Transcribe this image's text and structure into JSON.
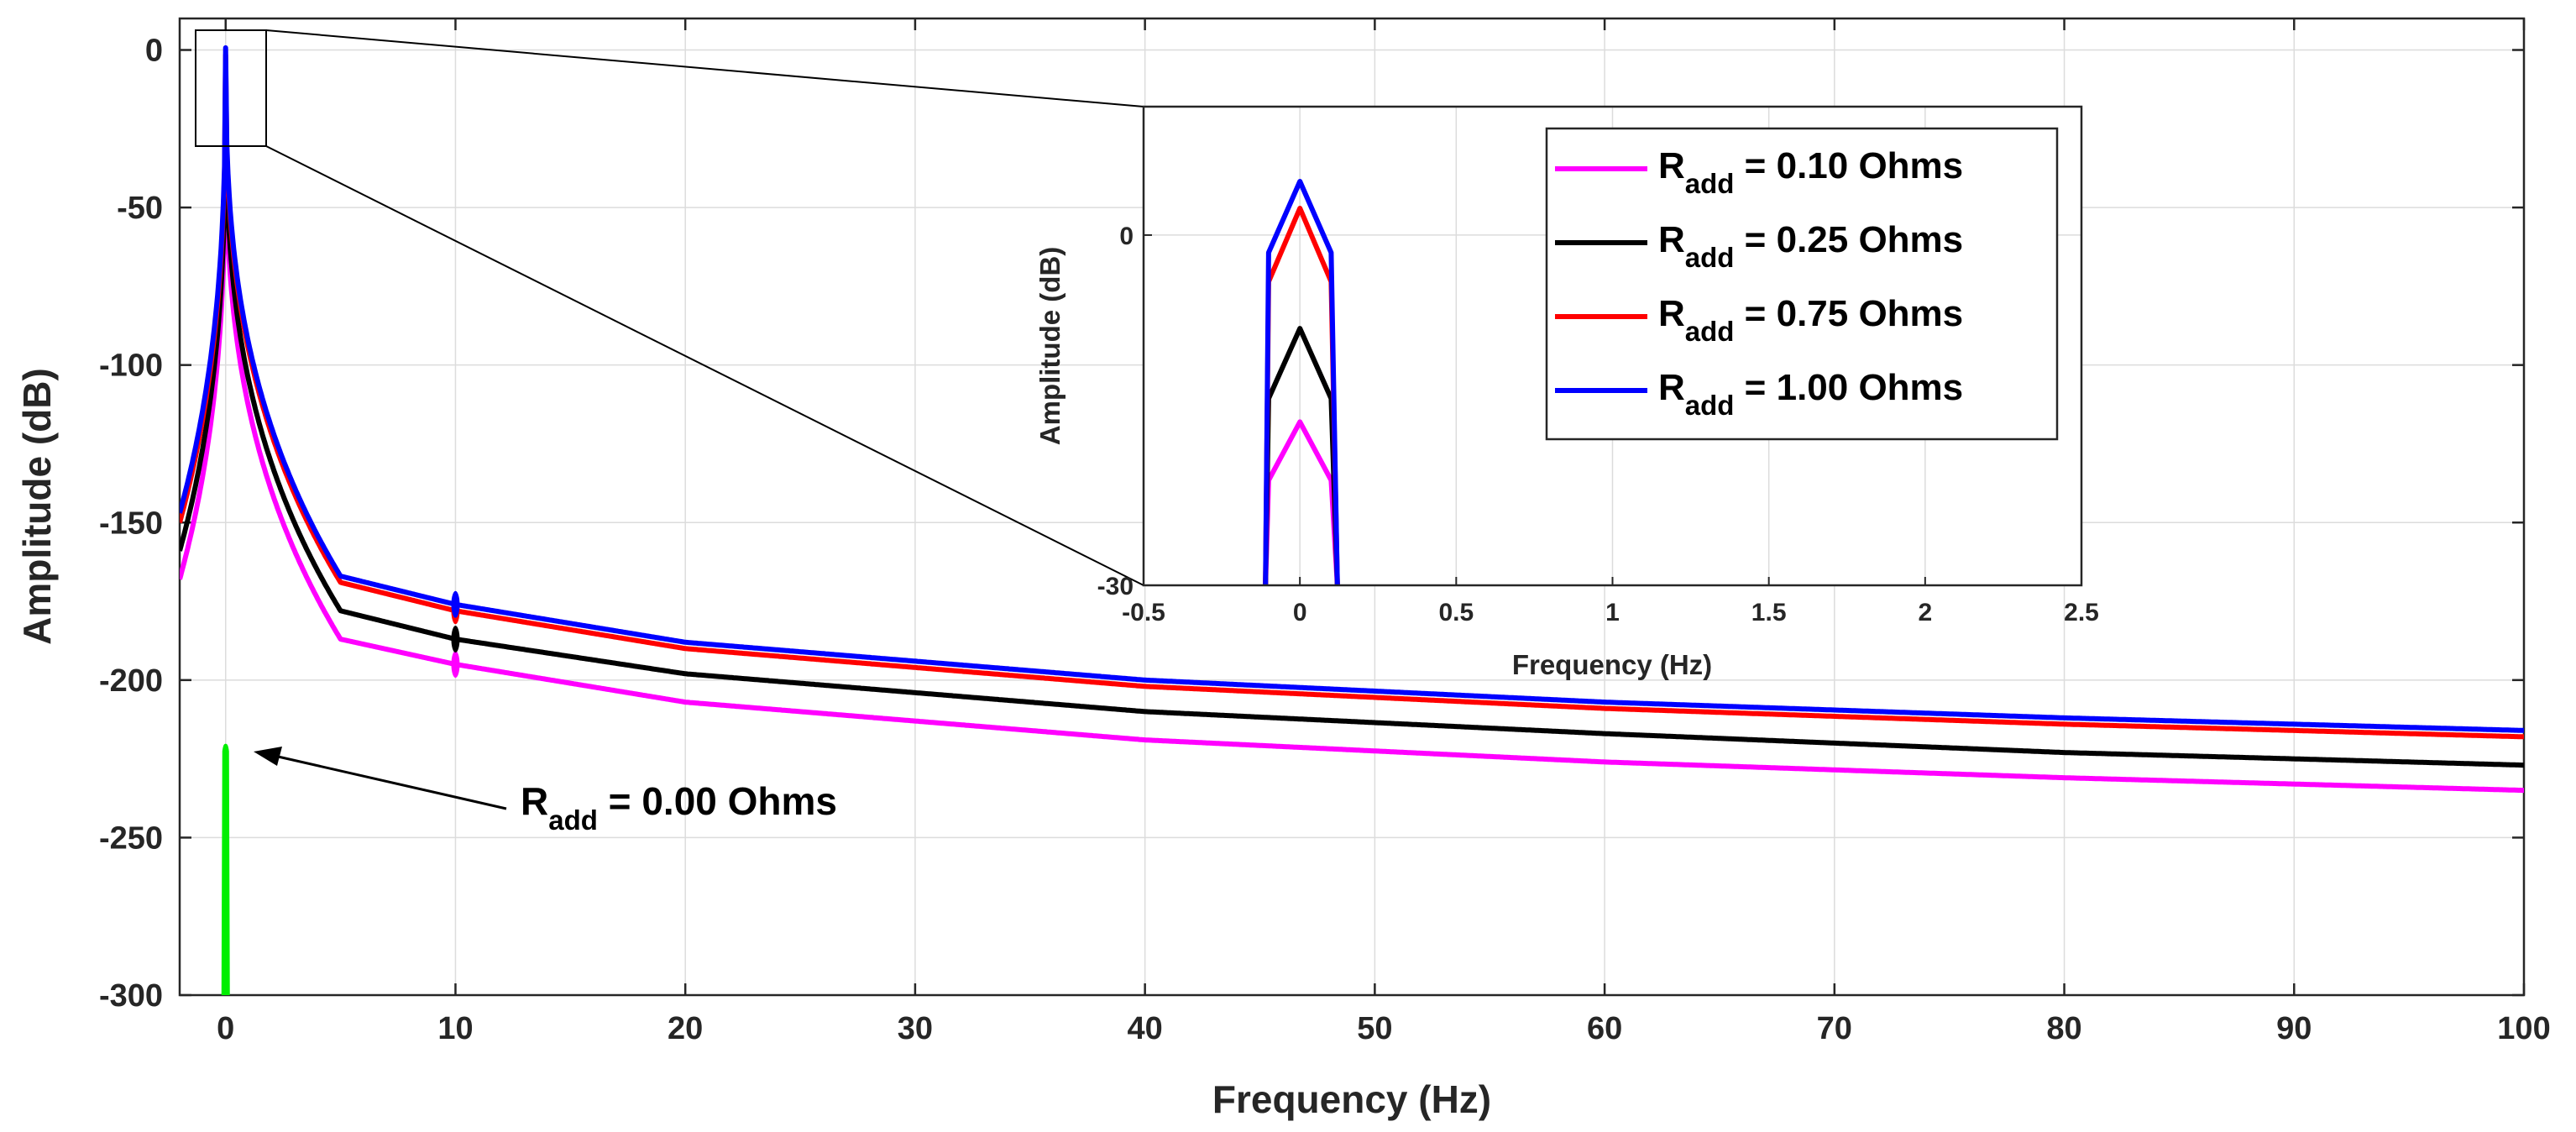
{
  "chart_data": {
    "type": "line",
    "main": {
      "title": "",
      "xlabel": "Frequency (Hz)",
      "ylabel": "Amplitude (dB)",
      "xlim": [
        -2,
        100
      ],
      "ylim": [
        -300,
        10
      ],
      "xticks": [
        0,
        10,
        20,
        30,
        40,
        50,
        60,
        70,
        80,
        90,
        100
      ],
      "yticks": [
        0,
        -50,
        -100,
        -150,
        -200,
        -250,
        -300
      ],
      "grid": true
    },
    "inset": {
      "xlabel": "Frequency (Hz)",
      "ylabel": "Amplitude (dB)",
      "xlim": [
        -0.5,
        2.5
      ],
      "ylim": [
        -30,
        11
      ],
      "xticks": [
        -0.5,
        0,
        0.5,
        1,
        1.5,
        2,
        2.5
      ],
      "xtick_labels": [
        "-0.5",
        "0",
        "0.5",
        "1",
        "1.5",
        "2",
        "2.5"
      ],
      "yticks": [
        0,
        -30
      ],
      "grid": true
    },
    "series": [
      {
        "name": "R_add = 0.10 Ohms",
        "symbol": "R",
        "subscript": "add",
        "value_text": " = 0.10 Ohms",
        "color": "#ff00ff",
        "peak_db": -16,
        "tail": {
          "x": [
            -2,
            5,
            10,
            20,
            40,
            60,
            80,
            100
          ],
          "y": [
            -168,
            -187,
            -195,
            -207,
            -219,
            -226,
            -231,
            -235
          ]
        },
        "marker_x": 10,
        "inset": {
          "x": [
            -0.11,
            -0.1,
            0,
            0.1,
            0.12
          ],
          "y": [
            -30,
            -21,
            -16,
            -21,
            -30
          ]
        }
      },
      {
        "name": "R_add = 0.25 Ohms",
        "symbol": "R",
        "subscript": "add",
        "value_text": " = 0.25 Ohms",
        "color": "#000000",
        "peak_db": -8,
        "tail": {
          "x": [
            -2,
            5,
            10,
            20,
            40,
            60,
            80,
            100
          ],
          "y": [
            -159,
            -178,
            -187,
            -198,
            -210,
            -217,
            -223,
            -227
          ]
        },
        "marker_x": 10,
        "inset": {
          "x": [
            -0.11,
            -0.1,
            0,
            0.1,
            0.12
          ],
          "y": [
            -30,
            -14,
            -8,
            -14,
            -30
          ]
        }
      },
      {
        "name": "R_add = 0.75 Ohms",
        "symbol": "R",
        "subscript": "add",
        "value_text": " = 0.75 Ohms",
        "color": "#ff0000",
        "peak_db": 2.3,
        "tail": {
          "x": [
            -2,
            5,
            10,
            20,
            40,
            60,
            80,
            100
          ],
          "y": [
            -150,
            -169,
            -178,
            -190,
            -202,
            -209,
            -214,
            -218
          ]
        },
        "marker_x": 10,
        "inset": {
          "x": [
            -0.11,
            -0.1,
            0,
            0.1,
            0.12
          ],
          "y": [
            -30,
            -4,
            2.3,
            -4,
            -30
          ]
        }
      },
      {
        "name": "R_add = 1.00 Ohms",
        "symbol": "R",
        "subscript": "add",
        "value_text": " = 1.00 Ohms",
        "color": "#0000ff",
        "peak_db": 4.6,
        "tail": {
          "x": [
            -2,
            5,
            10,
            20,
            40,
            60,
            80,
            100
          ],
          "y": [
            -147,
            -167,
            -176,
            -188,
            -200,
            -207,
            -212,
            -216
          ]
        },
        "marker_x": 10,
        "inset": {
          "x": [
            -0.11,
            -0.1,
            0,
            0.1,
            0.12
          ],
          "y": [
            -30,
            -1.5,
            4.6,
            -1.5,
            -30
          ]
        }
      }
    ],
    "zero_series": {
      "name": "R_add = 0.00 Ohms",
      "color": "#00ee00",
      "peak_db": -221,
      "x": 0
    },
    "annotation": {
      "symbol": "R",
      "subscript": "add",
      "value_text": " = 0.00 Ohms"
    }
  }
}
